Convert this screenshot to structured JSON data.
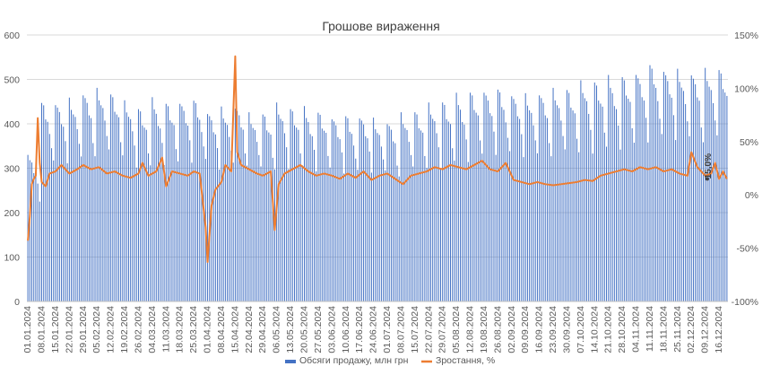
{
  "chart_data": {
    "type": "bar+line",
    "title": "Грошове вираження",
    "y_left": {
      "min": 0,
      "max": 600,
      "ticks": [
        "0",
        "100",
        "200",
        "300",
        "400",
        "500",
        "600"
      ]
    },
    "y_right": {
      "min": -100,
      "max": 150,
      "ticks": [
        "-100%",
        "-50%",
        "0%",
        "50%",
        "100%",
        "150%"
      ]
    },
    "x_start_date": "2024-01-01",
    "x_end_date": "2024-12-20",
    "x_tick_labels": [
      "01.01.2024",
      "08.01.2024",
      "15.01.2024",
      "22.01.2024",
      "29.01.2024",
      "05.02.2024",
      "12.02.2024",
      "19.02.2024",
      "26.02.2024",
      "04.03.2024",
      "11.03.2024",
      "18.03.2024",
      "25.03.2024",
      "01.04.2024",
      "08.04.2024",
      "15.04.2024",
      "22.04.2024",
      "29.04.2024",
      "06.05.2024",
      "13.05.2024",
      "20.05.2024",
      "27.05.2024",
      "03.06.2024",
      "10.06.2024",
      "17.06.2024",
      "24.06.2024",
      "01.07.2024",
      "08.07.2024",
      "15.07.2024",
      "22.07.2024",
      "29.07.2024",
      "05.08.2024",
      "12.08.2024",
      "19.08.2024",
      "26.08.2024",
      "02.09.2024",
      "09.09.2024",
      "16.09.2024",
      "23.09.2024",
      "30.09.2024",
      "07.10.2024",
      "14.10.2024",
      "21.10.2024",
      "28.10.2024",
      "04.11.2024",
      "11.11.2024",
      "18.11.2024",
      "25.11.2024",
      "02.12.2024",
      "09.12.2024",
      "16.12.2024"
    ],
    "series": [
      {
        "name": "Обсяги продажу, млн грн",
        "axis": "left",
        "kind": "bar",
        "color": "#4472C4",
        "weekly_levels": [
          330,
          445,
          450,
          455,
          470,
          475,
          470,
          445,
          435,
          450,
          445,
          455,
          450,
          430,
          435,
          440,
          420,
          425,
          440,
          435,
          430,
          425,
          420,
          415,
          420,
          410,
          405,
          420,
          430,
          440,
          450,
          460,
          470,
          480,
          475,
          470,
          465,
          470,
          475,
          480,
          490,
          495,
          500,
          505,
          520,
          530,
          525,
          520,
          515,
          520,
          525
        ]
      },
      {
        "name": "Зростання, %",
        "axis": "right",
        "kind": "line",
        "color": "#ED7D31",
        "points": [
          {
            "date": "2024-01-01",
            "value": -43
          },
          {
            "date": "2024-01-02",
            "value": -20
          },
          {
            "date": "2024-01-03",
            "value": 10
          },
          {
            "date": "2024-01-04",
            "value": 15
          },
          {
            "date": "2024-01-05",
            "value": 18
          },
          {
            "date": "2024-01-06",
            "value": 72
          },
          {
            "date": "2024-01-07",
            "value": 30
          },
          {
            "date": "2024-01-08",
            "value": 12
          },
          {
            "date": "2024-01-10",
            "value": 8
          },
          {
            "date": "2024-01-12",
            "value": 20
          },
          {
            "date": "2024-01-15",
            "value": 22
          },
          {
            "date": "2024-01-18",
            "value": 28
          },
          {
            "date": "2024-01-22",
            "value": 20
          },
          {
            "date": "2024-01-26",
            "value": 24
          },
          {
            "date": "2024-01-29",
            "value": 28
          },
          {
            "date": "2024-02-02",
            "value": 24
          },
          {
            "date": "2024-02-06",
            "value": 26
          },
          {
            "date": "2024-02-10",
            "value": 20
          },
          {
            "date": "2024-02-14",
            "value": 22
          },
          {
            "date": "2024-02-18",
            "value": 18
          },
          {
            "date": "2024-02-22",
            "value": 16
          },
          {
            "date": "2024-02-26",
            "value": 20
          },
          {
            "date": "2024-02-28",
            "value": 30
          },
          {
            "date": "2024-03-02",
            "value": 18
          },
          {
            "date": "2024-03-06",
            "value": 22
          },
          {
            "date": "2024-03-09",
            "value": 35
          },
          {
            "date": "2024-03-11",
            "value": 8
          },
          {
            "date": "2024-03-14",
            "value": 22
          },
          {
            "date": "2024-03-18",
            "value": 20
          },
          {
            "date": "2024-03-22",
            "value": 18
          },
          {
            "date": "2024-03-25",
            "value": 22
          },
          {
            "date": "2024-03-28",
            "value": 20
          },
          {
            "date": "2024-03-31",
            "value": -30
          },
          {
            "date": "2024-04-01",
            "value": -63
          },
          {
            "date": "2024-04-03",
            "value": -10
          },
          {
            "date": "2024-04-05",
            "value": 5
          },
          {
            "date": "2024-04-08",
            "value": 12
          },
          {
            "date": "2024-04-10",
            "value": 28
          },
          {
            "date": "2024-04-13",
            "value": 22
          },
          {
            "date": "2024-04-15",
            "value": 130
          },
          {
            "date": "2024-04-16",
            "value": 40
          },
          {
            "date": "2024-04-18",
            "value": 28
          },
          {
            "date": "2024-04-22",
            "value": 24
          },
          {
            "date": "2024-04-26",
            "value": 20
          },
          {
            "date": "2024-04-29",
            "value": 18
          },
          {
            "date": "2024-05-03",
            "value": 22
          },
          {
            "date": "2024-05-05",
            "value": -33
          },
          {
            "date": "2024-05-07",
            "value": 10
          },
          {
            "date": "2024-05-10",
            "value": 20
          },
          {
            "date": "2024-05-14",
            "value": 24
          },
          {
            "date": "2024-05-18",
            "value": 28
          },
          {
            "date": "2024-05-22",
            "value": 22
          },
          {
            "date": "2024-05-26",
            "value": 18
          },
          {
            "date": "2024-05-30",
            "value": 20
          },
          {
            "date": "2024-06-03",
            "value": 18
          },
          {
            "date": "2024-06-07",
            "value": 15
          },
          {
            "date": "2024-06-11",
            "value": 20
          },
          {
            "date": "2024-06-15",
            "value": 16
          },
          {
            "date": "2024-06-19",
            "value": 22
          },
          {
            "date": "2024-06-23",
            "value": 14
          },
          {
            "date": "2024-06-27",
            "value": 18
          },
          {
            "date": "2024-07-01",
            "value": 20
          },
          {
            "date": "2024-07-05",
            "value": 15
          },
          {
            "date": "2024-07-09",
            "value": 10
          },
          {
            "date": "2024-07-13",
            "value": 18
          },
          {
            "date": "2024-07-17",
            "value": 20
          },
          {
            "date": "2024-07-21",
            "value": 22
          },
          {
            "date": "2024-07-25",
            "value": 26
          },
          {
            "date": "2024-07-29",
            "value": 24
          },
          {
            "date": "2024-08-02",
            "value": 28
          },
          {
            "date": "2024-08-06",
            "value": 26
          },
          {
            "date": "2024-08-10",
            "value": 24
          },
          {
            "date": "2024-08-14",
            "value": 28
          },
          {
            "date": "2024-08-18",
            "value": 32
          },
          {
            "date": "2024-08-22",
            "value": 24
          },
          {
            "date": "2024-08-26",
            "value": 22
          },
          {
            "date": "2024-08-30",
            "value": 30
          },
          {
            "date": "2024-09-03",
            "value": 14
          },
          {
            "date": "2024-09-07",
            "value": 12
          },
          {
            "date": "2024-09-11",
            "value": 10
          },
          {
            "date": "2024-09-15",
            "value": 12
          },
          {
            "date": "2024-09-19",
            "value": 10
          },
          {
            "date": "2024-09-23",
            "value": 9
          },
          {
            "date": "2024-09-27",
            "value": 10
          },
          {
            "date": "2024-10-01",
            "value": 11
          },
          {
            "date": "2024-10-05",
            "value": 12
          },
          {
            "date": "2024-10-09",
            "value": 14
          },
          {
            "date": "2024-10-13",
            "value": 13
          },
          {
            "date": "2024-10-17",
            "value": 18
          },
          {
            "date": "2024-10-21",
            "value": 20
          },
          {
            "date": "2024-10-25",
            "value": 22
          },
          {
            "date": "2024-10-29",
            "value": 24
          },
          {
            "date": "2024-11-02",
            "value": 22
          },
          {
            "date": "2024-11-06",
            "value": 26
          },
          {
            "date": "2024-11-10",
            "value": 24
          },
          {
            "date": "2024-11-14",
            "value": 26
          },
          {
            "date": "2024-11-18",
            "value": 22
          },
          {
            "date": "2024-11-22",
            "value": 24
          },
          {
            "date": "2024-11-26",
            "value": 20
          },
          {
            "date": "2024-11-30",
            "value": 18
          },
          {
            "date": "2024-12-02",
            "value": 40
          },
          {
            "date": "2024-12-05",
            "value": 26
          },
          {
            "date": "2024-12-09",
            "value": 18
          },
          {
            "date": "2024-12-12",
            "value": 20
          },
          {
            "date": "2024-12-14",
            "value": 30
          },
          {
            "date": "2024-12-16",
            "value": 15
          },
          {
            "date": "2024-12-18",
            "value": 22
          },
          {
            "date": "2024-12-20",
            "value": 15
          }
        ]
      }
    ],
    "annotation": {
      "text": "15,0%",
      "date": "2024-12-10",
      "value": 15
    },
    "legend": {
      "position": "bottom"
    },
    "grid": true
  }
}
